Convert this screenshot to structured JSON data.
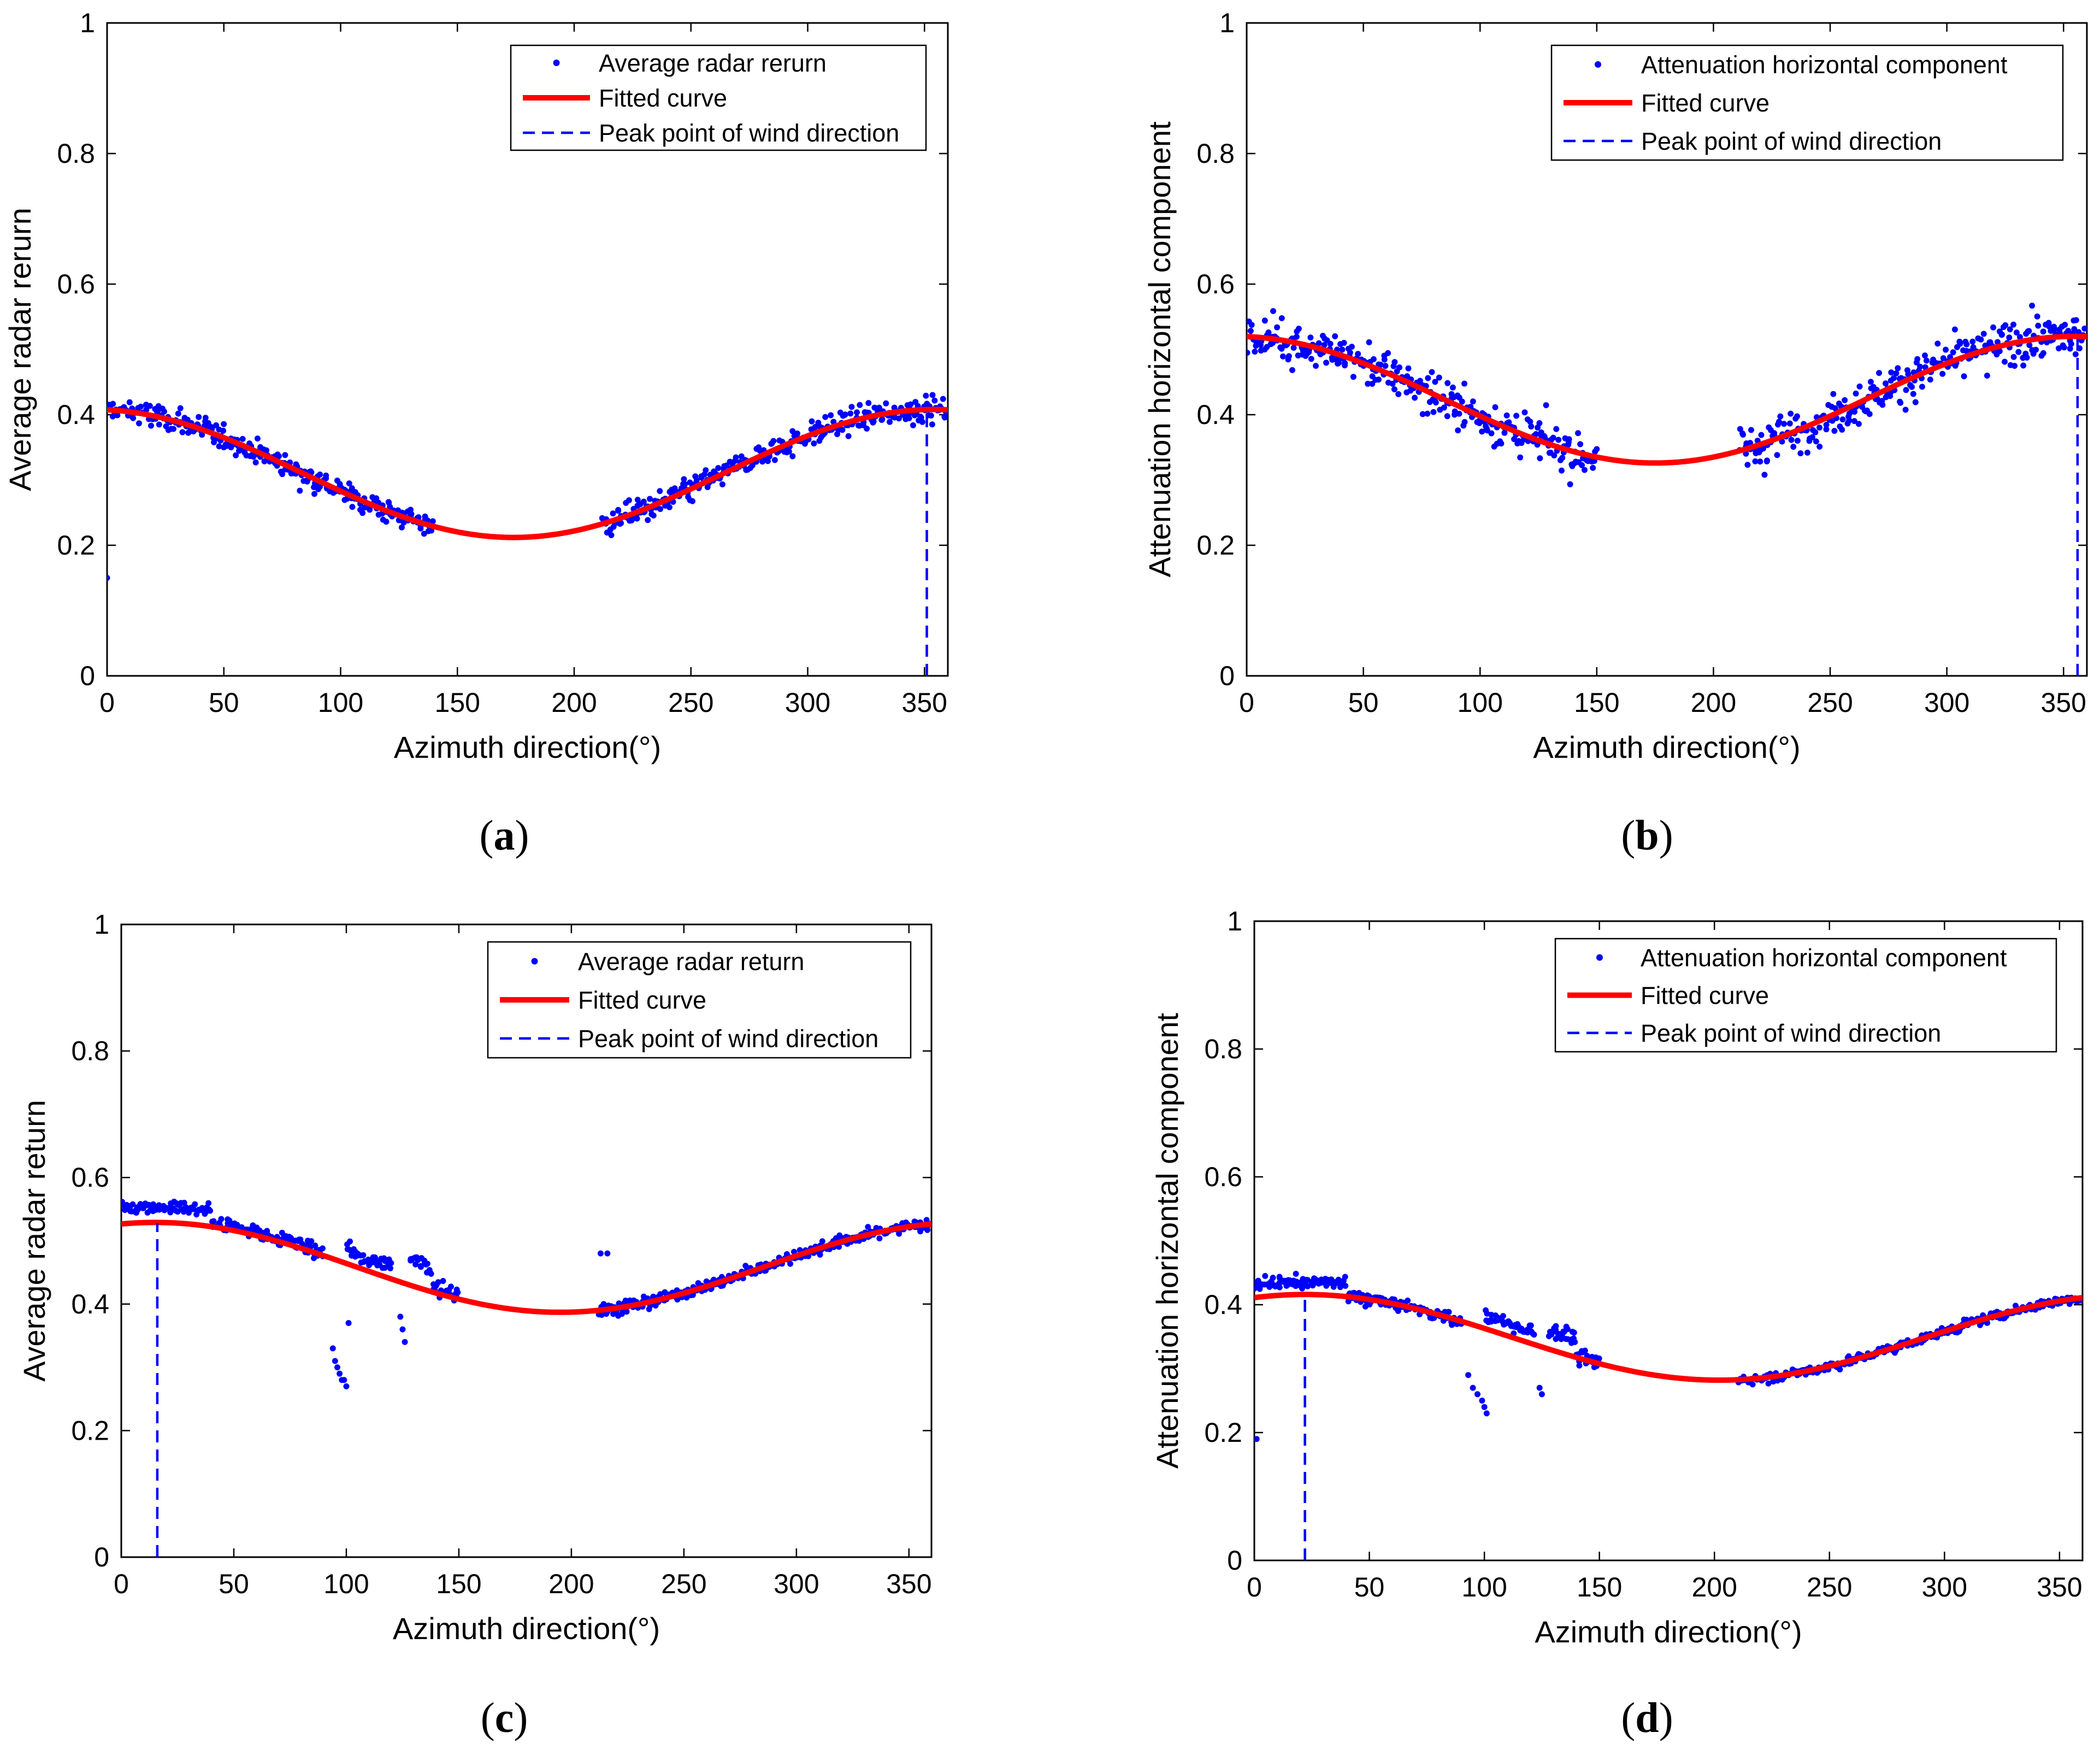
{
  "figure": {
    "colors": {
      "markers": "#0000ff",
      "fit": "#ff0000",
      "peak": "#0000ff",
      "axes": "#000000"
    },
    "panels": [
      {
        "label_letter": "a",
        "xticks": [
          "0",
          "50",
          "100",
          "150",
          "200",
          "250",
          "300",
          "350"
        ],
        "yticks": [
          "0",
          "0.2",
          "0.4",
          "0.6",
          "0.8",
          "1"
        ],
        "legend": [
          "Average radar rerurn",
          "Fitted curve",
          "Peak point of wind direction"
        ]
      },
      {
        "label_letter": "b",
        "xticks": [
          "0",
          "50",
          "100",
          "150",
          "200",
          "250",
          "300",
          "350"
        ],
        "yticks": [
          "0",
          "0.2",
          "0.4",
          "0.6",
          "0.8",
          "1"
        ],
        "legend": [
          "Attenuation horizontal component",
          "Fitted curve",
          "Peak point of wind direction"
        ]
      },
      {
        "label_letter": "c",
        "xticks": [
          "0",
          "50",
          "100",
          "150",
          "200",
          "250",
          "300",
          "350"
        ],
        "yticks": [
          "0",
          "0.2",
          "0.4",
          "0.6",
          "0.8",
          "1"
        ],
        "legend": [
          "Average radar return",
          "Fitted curve",
          "Peak point of wind direction"
        ]
      },
      {
        "label_letter": "d",
        "xticks": [
          "0",
          "50",
          "100",
          "150",
          "200",
          "250",
          "300",
          "350"
        ],
        "yticks": [
          "0",
          "0.2",
          "0.4",
          "0.6",
          "0.8",
          "1"
        ],
        "legend": [
          "Attenuation horizontal component",
          "Fitted curve",
          "Peak point of wind direction"
        ]
      }
    ]
  },
  "chart_data": [
    {
      "panel": "a",
      "type": "scatter",
      "xlabel": "Azimuth direction(°)",
      "ylabel": "Average radar rerurn",
      "xlim": [
        0,
        360
      ],
      "ylim": [
        0,
        1
      ],
      "series": [
        {
          "name": "Average radar rerurn",
          "type": "scatter",
          "segments": [
            {
              "x0": 0,
              "x1": 140,
              "step": 1,
              "noise": 0.02,
              "dy": 0
            },
            {
              "x0": 212,
              "x1": 360,
              "step": 1,
              "noise": 0.02,
              "dy": 0
            }
          ],
          "extra_points": [
            [
              0,
              0.15
            ]
          ]
        },
        {
          "name": "Fitted curve",
          "type": "line",
          "model": {
            "mean": 0.31,
            "amplitude": 0.098,
            "peak_deg": 354
          }
        },
        {
          "name": "Peak point of wind direction",
          "type": "vline",
          "x": 351,
          "y_top": 0.405
        }
      ]
    },
    {
      "panel": "b",
      "type": "scatter",
      "xlabel": "Azimuth direction(°)",
      "ylabel": "Attenuation horizontal component",
      "xlim": [
        0,
        360
      ],
      "ylim": [
        0,
        1
      ],
      "series": [
        {
          "name": "Attenuation horizontal component",
          "type": "scatter",
          "segments": [
            {
              "x0": 0,
              "x1": 150,
              "step": 1,
              "noise": 0.035,
              "dy": 0
            },
            {
              "x0": 211,
              "x1": 360,
              "step": 1,
              "noise": 0.035,
              "dy": 0
            }
          ],
          "extra_points": []
        },
        {
          "name": "Fitted curve",
          "type": "line",
          "model": {
            "mean": 0.423,
            "amplitude": 0.097,
            "peak_deg": 355
          }
        },
        {
          "name": "Peak point of wind direction",
          "type": "vline",
          "x": 356,
          "y_top": 0.52
        }
      ]
    },
    {
      "panel": "c",
      "type": "scatter",
      "xlabel": "Azimuth direction(°)",
      "ylabel": "Average radar return",
      "xlim": [
        0,
        360
      ],
      "ylim": [
        0,
        1
      ],
      "series": [
        {
          "name": "Average radar return",
          "type": "scatter",
          "segments": [
            {
              "x0": 0,
              "x1": 40,
              "step": 1,
              "noise": 0.01,
              "dy": 0.025
            },
            {
              "x0": 40,
              "x1": 90,
              "step": 1,
              "noise": 0.012,
              "dy": 0.005
            },
            {
              "x0": 100,
              "x1": 120,
              "step": 1,
              "noise": 0.015,
              "dy": 0.02
            },
            {
              "x0": 128,
              "x1": 138,
              "step": 1,
              "noise": 0.015,
              "dy": 0.04
            },
            {
              "x0": 138,
              "x1": 150,
              "step": 1,
              "noise": 0.015,
              "dy": 0.01
            },
            {
              "x0": 212,
              "x1": 360,
              "step": 1,
              "noise": 0.01,
              "dy": 0.0
            }
          ],
          "extra_points": [
            [
              94,
              0.33
            ],
            [
              95,
              0.31
            ],
            [
              96,
              0.3
            ],
            [
              97,
              0.29
            ],
            [
              98,
              0.28
            ],
            [
              99,
              0.28
            ],
            [
              100,
              0.27
            ],
            [
              101,
              0.37
            ],
            [
              124,
              0.38
            ],
            [
              125,
              0.36
            ],
            [
              126,
              0.34
            ],
            [
              213,
              0.48
            ],
            [
              216,
              0.48
            ]
          ]
        },
        {
          "name": "Fitted curve",
          "type": "line",
          "model": {
            "mean": 0.458,
            "amplitude": 0.071,
            "peak_deg": 15
          }
        },
        {
          "name": "Peak point of wind direction",
          "type": "vline",
          "x": 16,
          "y_top": 0.528
        }
      ]
    },
    {
      "panel": "d",
      "type": "scatter",
      "xlabel": "Azimuth direction(°)",
      "ylabel": "Attenuation horizontal component",
      "xlim": [
        0,
        360
      ],
      "ylim": [
        0,
        1
      ],
      "series": [
        {
          "name": "Attenuation horizontal component",
          "type": "scatter",
          "segments": [
            {
              "x0": 0,
              "x1": 40,
              "step": 1,
              "noise": 0.01,
              "dy": 0.02
            },
            {
              "x0": 40,
              "x1": 90,
              "step": 1,
              "noise": 0.01,
              "dy": 0.0
            },
            {
              "x0": 100,
              "x1": 122,
              "step": 1,
              "noise": 0.012,
              "dy": 0.02
            },
            {
              "x0": 128,
              "x1": 140,
              "step": 1,
              "noise": 0.012,
              "dy": 0.03
            },
            {
              "x0": 140,
              "x1": 150,
              "step": 1,
              "noise": 0.012,
              "dy": 0.0
            },
            {
              "x0": 210,
              "x1": 360,
              "step": 1,
              "noise": 0.008,
              "dy": 0.0
            }
          ],
          "extra_points": [
            [
              1,
              0.19
            ],
            [
              93,
              0.29
            ],
            [
              95,
              0.27
            ],
            [
              97,
              0.26
            ],
            [
              99,
              0.25
            ],
            [
              100,
              0.24
            ],
            [
              101,
              0.23
            ],
            [
              124,
              0.27
            ],
            [
              125,
              0.26
            ]
          ]
        },
        {
          "name": "Fitted curve",
          "type": "line",
          "model": {
            "mean": 0.349,
            "amplitude": 0.067,
            "peak_deg": 22
          }
        },
        {
          "name": "Peak point of wind direction",
          "type": "vline",
          "x": 22,
          "y_top": 0.415
        }
      ]
    }
  ]
}
